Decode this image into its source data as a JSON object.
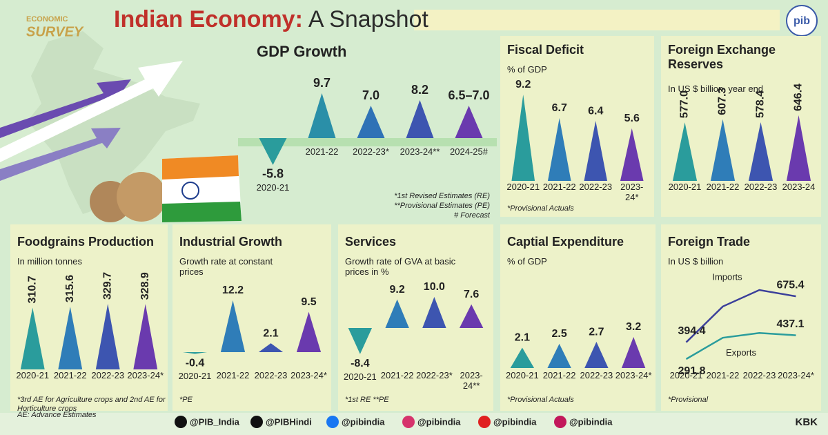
{
  "header": {
    "logo_top": "ECONOMIC",
    "logo_bottom": "SURVEY",
    "title_main": "Indian Economy:",
    "title_rest": "A Snapshot",
    "pib": "pib"
  },
  "chart_data": [
    {
      "type": "bar",
      "title": "GDP Growth",
      "categories": [
        "2020-21",
        "2021-22",
        "2022-23*",
        "2023-24**",
        "2024-25#"
      ],
      "values": [
        -5.8,
        9.7,
        7.0,
        8.2,
        7.0
      ],
      "value_labels": [
        "-5.8",
        "9.7",
        "7.0",
        "8.2",
        "6.5–7.0"
      ],
      "colors": [
        "#2a9c9c",
        "#2a8fa8",
        "#2f72b6",
        "#3d55b0",
        "#6a3aae"
      ],
      "notes": [
        "*1st Revised Estimates (RE)",
        "**Provisional Estimates (PE)",
        "# Forecast"
      ]
    },
    {
      "type": "bar",
      "title": "Fiscal Deficit",
      "subtitle": "% of GDP",
      "categories": [
        "2020-21",
        "2021-22",
        "2022-23",
        "2023-24*"
      ],
      "values": [
        9.2,
        6.7,
        6.4,
        5.6
      ],
      "value_labels": [
        "9.2",
        "6.7",
        "6.4",
        "5.6"
      ],
      "colors": [
        "#2a9c9c",
        "#2f7db8",
        "#3d55b0",
        "#6a3aae"
      ],
      "notes": [
        "*Provisional Actuals"
      ]
    },
    {
      "type": "bar",
      "title": "Foreign Exchange Reserves",
      "subtitle": "In US $ billion, year end",
      "categories": [
        "2020-21",
        "2021-22",
        "2022-23",
        "2023-24"
      ],
      "values": [
        577.0,
        607.3,
        578.4,
        646.4
      ],
      "value_labels": [
        "577.0",
        "607.3",
        "578.4",
        "646.4"
      ],
      "colors": [
        "#2a9c9c",
        "#2f7db8",
        "#3d55b0",
        "#6a3aae"
      ]
    },
    {
      "type": "bar",
      "title": "Foodgrains Production",
      "subtitle": "In million tonnes",
      "categories": [
        "2020-21",
        "2021-22",
        "2022-23",
        "2023-24*"
      ],
      "values": [
        310.7,
        315.6,
        329.7,
        328.9
      ],
      "value_labels": [
        "310.7",
        "315.6",
        "329.7",
        "328.9"
      ],
      "colors": [
        "#2a9c9c",
        "#2f7db8",
        "#3d55b0",
        "#6a3aae"
      ],
      "notes": [
        "*3rd AE for Agriculture crops and 2nd AE for Horticulture crops",
        "AE: Advance Estimates"
      ]
    },
    {
      "type": "bar",
      "title": "Industrial Growth",
      "subtitle": "Growth rate at constant prices",
      "categories": [
        "2020-21",
        "2021-22",
        "2022-23",
        "2023-24*"
      ],
      "values": [
        -0.4,
        12.2,
        2.1,
        9.5
      ],
      "value_labels": [
        "-0.4",
        "12.2",
        "2.1",
        "9.5"
      ],
      "colors": [
        "#2a9c9c",
        "#2f7db8",
        "#3d55b0",
        "#6a3aae"
      ],
      "notes": [
        "*PE"
      ]
    },
    {
      "type": "bar",
      "title": "Services",
      "subtitle": "Growth rate of GVA at basic prices in %",
      "categories": [
        "2020-21",
        "2021-22",
        "2022-23*",
        "2023-24**"
      ],
      "values": [
        -8.4,
        9.2,
        10.0,
        7.6
      ],
      "value_labels": [
        "-8.4",
        "9.2",
        "10.0",
        "7.6"
      ],
      "colors": [
        "#2a9c9c",
        "#2f7db8",
        "#3d55b0",
        "#6a3aae"
      ],
      "notes": [
        "*1st RE **PE"
      ]
    },
    {
      "type": "bar",
      "title": "Captial Expenditure",
      "subtitle": "% of GDP",
      "categories": [
        "2020-21",
        "2021-22",
        "2022-23",
        "2023-24*"
      ],
      "values": [
        2.1,
        2.5,
        2.7,
        3.2
      ],
      "value_labels": [
        "2.1",
        "2.5",
        "2.7",
        "3.2"
      ],
      "colors": [
        "#2a9c9c",
        "#2f7db8",
        "#3d55b0",
        "#6a3aae"
      ],
      "notes": [
        "*Provisional Actuals"
      ]
    },
    {
      "type": "line",
      "title": "Foreign Trade",
      "subtitle": "In US $ billion",
      "categories": [
        "2020-21",
        "2021-22",
        "2022-23",
        "2023-24*"
      ],
      "series": [
        {
          "name": "Imports",
          "color": "#3b3f9a",
          "values": [
            394.4,
            613,
            714,
            675.4
          ],
          "value_labels": [
            "394.4",
            null,
            null,
            "675.4"
          ]
        },
        {
          "name": "Exports",
          "color": "#2a9c9c",
          "values": [
            291.8,
            422,
            451,
            437.1
          ],
          "value_labels": [
            "291.8",
            null,
            null,
            "437.1"
          ]
        }
      ],
      "notes": [
        "*Provisional"
      ]
    }
  ],
  "footer": {
    "handles": [
      "@PIB_India",
      "@PIBHindi",
      "@pibindia",
      "@pibindia",
      "@pibindia",
      "@pibindia"
    ],
    "credit": "KBK"
  }
}
